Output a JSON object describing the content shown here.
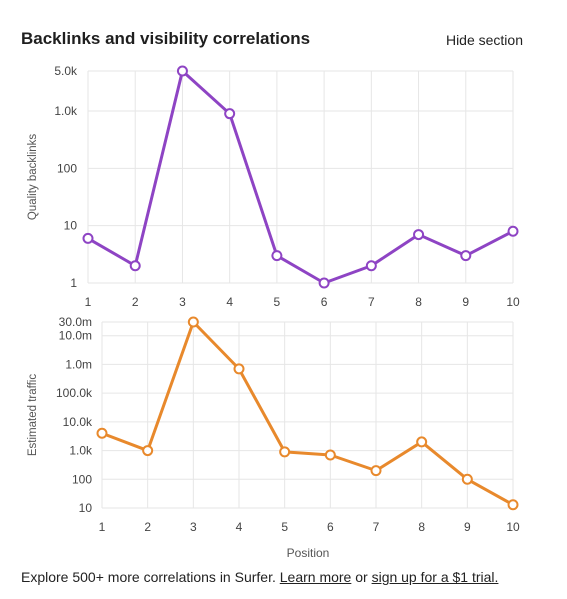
{
  "header": {
    "title": "Backlinks and visibility correlations",
    "hide_label": "Hide section"
  },
  "footer": {
    "text": "Explore 500+ more correlations in Surfer.",
    "learn_more": "Learn more",
    "or": "or",
    "signup": "sign up for a $1 trial."
  },
  "x_axis_label": "Position",
  "chart_data": [
    {
      "type": "line",
      "ylabel": "Quality backlinks",
      "yscale": "log",
      "color": "#8e44c4",
      "x": [
        1,
        2,
        3,
        4,
        5,
        6,
        7,
        8,
        9,
        10
      ],
      "y_ticks": [
        1,
        10,
        100,
        1000,
        5000
      ],
      "y_tick_labels": [
        "1",
        "10",
        "100",
        "1.0k",
        "5.0k"
      ],
      "ylim": [
        1,
        5000
      ],
      "grid": true,
      "series": [
        {
          "values": [
            6,
            2,
            5000,
            900,
            3,
            1,
            2,
            7,
            3,
            8
          ]
        }
      ]
    },
    {
      "type": "line",
      "ylabel": "Estimated traffic",
      "yscale": "log",
      "color": "#e8892c",
      "x": [
        1,
        2,
        3,
        4,
        5,
        6,
        7,
        8,
        9,
        10
      ],
      "y_ticks": [
        10,
        100,
        1000,
        10000,
        100000,
        1000000,
        10000000,
        30000000
      ],
      "y_tick_labels": [
        "10",
        "100",
        "1.0k",
        "10.0k",
        "100.0k",
        "1.0m",
        "10.0m",
        "30.0m"
      ],
      "ylim": [
        10,
        30000000
      ],
      "grid": true,
      "series": [
        {
          "values": [
            4000,
            1000,
            30000000,
            700000,
            900,
            700,
            200,
            2000,
            100,
            13
          ]
        }
      ]
    }
  ]
}
